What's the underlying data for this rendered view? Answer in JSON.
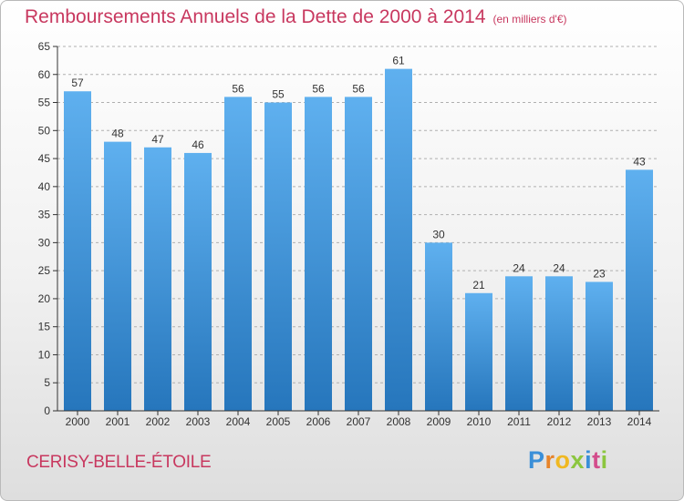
{
  "title": "Remboursements Annuels de la Dette de 2000 à 2014",
  "unit": "(en milliers d'€)",
  "footer": {
    "city": "CERISY-BELLE-ÉTOILE",
    "logo_letters": [
      "P",
      "r",
      "o",
      "x",
      "i",
      "t",
      "i"
    ]
  },
  "colors": {
    "title": "#c8385f",
    "bar_top": "#5fb0ef",
    "bar_bottom": "#2676bc",
    "axis": "#333333",
    "grid": "#b0b0b0"
  },
  "chart_data": {
    "type": "bar",
    "categories": [
      "2000",
      "2001",
      "2002",
      "2003",
      "2004",
      "2005",
      "2006",
      "2007",
      "2008",
      "2009",
      "2010",
      "2011",
      "2012",
      "2013",
      "2014"
    ],
    "values": [
      57,
      48,
      47,
      46,
      56,
      55,
      56,
      56,
      61,
      30,
      21,
      24,
      24,
      23,
      43
    ],
    "ylim": [
      0,
      65
    ],
    "yticks": [
      0,
      5,
      10,
      15,
      20,
      25,
      30,
      35,
      40,
      45,
      50,
      55,
      60,
      65
    ],
    "grid": true,
    "data_labels": true
  }
}
